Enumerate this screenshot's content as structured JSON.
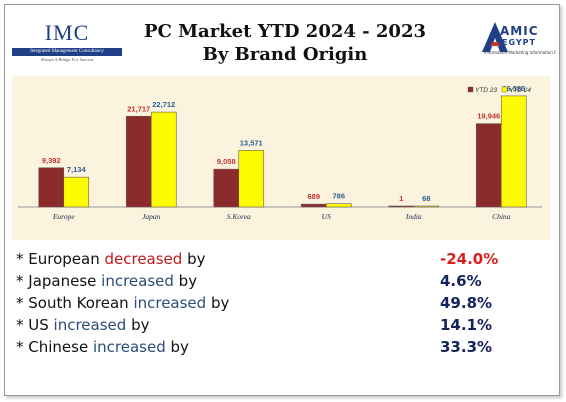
{
  "logo_left": {
    "name": "IMC",
    "tagline": "Integrated Management Consultancy",
    "subtagline": "Always A Bridge For Success"
  },
  "logo_right": {
    "line1": "AMIC",
    "line2": "EGYPT",
    "tagline": "Information Marketing Information Council"
  },
  "title_line1": "PC Market YTD 2024 - 2023",
  "title_line2": "By Brand Origin",
  "colors": {
    "ytd23": "#8b2b2b",
    "ytd24": "#fdfb00",
    "label23": "#c23232",
    "label24": "#2a5f90",
    "background": "#fcf3df"
  },
  "chart_data": {
    "type": "bar",
    "categories": [
      "Europe",
      "Japan",
      "S.Korea",
      "US",
      "India",
      "China"
    ],
    "series": [
      {
        "name": "YTD 23",
        "values": [
          9392,
          21717,
          9058,
          689,
          1,
          19946
        ],
        "labels": [
          "9,392",
          "21,717",
          "9,058",
          "689",
          "1",
          "19,946"
        ]
      },
      {
        "name": "YTD 24",
        "values": [
          7134,
          22712,
          13571,
          786,
          68,
          26585
        ],
        "labels": [
          "7,134",
          "22,712",
          "13,571",
          "786",
          "68",
          "26,585"
        ]
      }
    ],
    "legend": "top-right",
    "ylim": [
      0,
      28000
    ]
  },
  "stats": [
    {
      "prefix": "* European ",
      "word": "decreased",
      "suffix": " by",
      "value": "-24.0%",
      "direction": "dec"
    },
    {
      "prefix": "* Japanese ",
      "word": "increased",
      "suffix": " by",
      "value": "4.6%",
      "direction": "inc"
    },
    {
      "prefix": "* South Korean ",
      "word": "increased",
      "suffix": " by",
      "value": "49.8%",
      "direction": "inc"
    },
    {
      "prefix": "* US ",
      "word": "increased",
      "suffix": " by",
      "value": "14.1%",
      "direction": "inc"
    },
    {
      "prefix": "* Chinese ",
      "word": "increased",
      "suffix": " by",
      "value": "33.3%",
      "direction": "inc"
    }
  ]
}
